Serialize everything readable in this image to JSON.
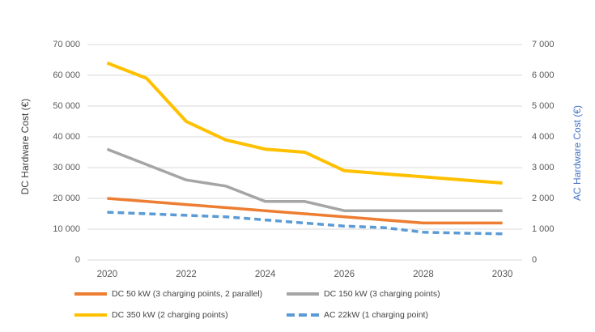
{
  "chart_data": {
    "type": "line",
    "x": [
      2020,
      2021,
      2022,
      2023,
      2024,
      2025,
      2026,
      2027,
      2028,
      2029,
      2030
    ],
    "x_tick_labels": [
      "2020",
      "2022",
      "2024",
      "2026",
      "2028",
      "2030"
    ],
    "series": [
      {
        "name": "DC 50 kW (3 charging points, 2 parallel)",
        "axis": "left",
        "color": "#ED7D31",
        "dash": "solid",
        "values": [
          20000,
          19000,
          18000,
          17000,
          16000,
          15000,
          14000,
          13000,
          12000,
          12000,
          12000
        ]
      },
      {
        "name": "DC 150 kW (3 charging points)",
        "axis": "left",
        "color": "#A5A5A5",
        "dash": "solid",
        "values": [
          36000,
          31000,
          26000,
          24000,
          19000,
          19000,
          16000,
          16000,
          16000,
          16000,
          16000
        ]
      },
      {
        "name": "DC 350 kW (2 charging points)",
        "axis": "left",
        "color": "#FFC000",
        "dash": "solid",
        "values": [
          64000,
          59000,
          45000,
          39000,
          36000,
          35000,
          29000,
          28000,
          27000,
          26000,
          25000
        ]
      },
      {
        "name": "AC 22kW (1 charging point)",
        "axis": "right",
        "color": "#5B9BD5",
        "dash": "dashed",
        "values": [
          1550,
          1500,
          1450,
          1400,
          1300,
          1200,
          1100,
          1050,
          900,
          870,
          850
        ]
      }
    ],
    "left_axis": {
      "label": "DC Hardware Cost (€)",
      "min": 0,
      "max": 70000,
      "step": 10000,
      "tick_labels": [
        "0",
        "10 000",
        "20 000",
        "30 000",
        "40 000",
        "50 000",
        "60 000",
        "70 000"
      ],
      "label_color": "#3f3f3f"
    },
    "right_axis": {
      "label": "AC Hardware Cost (€)",
      "min": 0,
      "max": 7000,
      "step": 1000,
      "tick_labels": [
        "0",
        "1 000",
        "2 000",
        "3 000",
        "4 000",
        "5 000",
        "6 000",
        "7 000"
      ],
      "label_color": "#4472C4"
    },
    "grid": true,
    "gridline_color": "#D9D9D9",
    "tick_color": "#595959",
    "legend_position": "bottom"
  }
}
